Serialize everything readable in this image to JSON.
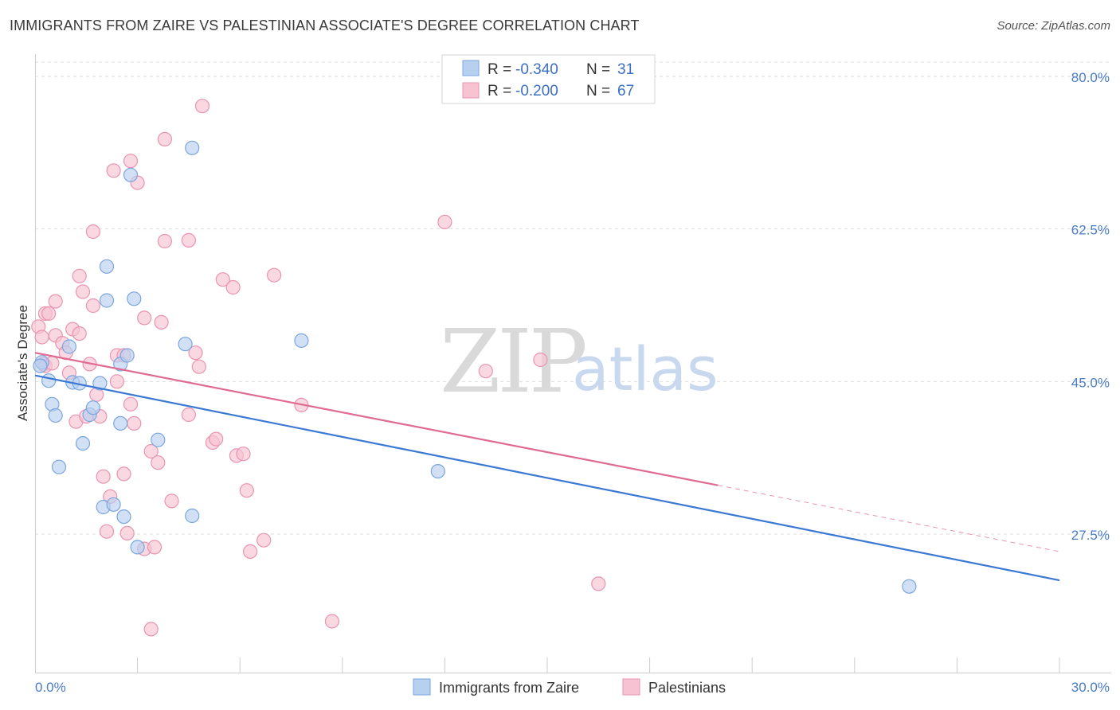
{
  "title": "IMMIGRANTS FROM ZAIRE VS PALESTINIAN ASSOCIATE'S DEGREE CORRELATION CHART",
  "source": "Source: ZipAtlas.com",
  "watermark": {
    "zip": "ZIP",
    "atlas": "atlas"
  },
  "colors": {
    "blue_fill": "#b8d0f0",
    "blue_stroke": "#7aa6e0",
    "blue_line": "#3a78d4",
    "pink_fill": "#f7c3d3",
    "pink_stroke": "#e994b0",
    "pink_line": "#e06a92",
    "grid": "#dddddd",
    "axis_text": "#4a7cc9"
  },
  "stats": [
    {
      "r_label": "R =",
      "r_value": "-0.340",
      "n_label": "N =",
      "n_value": "31"
    },
    {
      "r_label": "R =",
      "r_value": "-0.200",
      "n_label": "N =",
      "n_value": "67"
    }
  ],
  "chart_data": {
    "type": "scatter",
    "title": "IMMIGRANTS FROM ZAIRE VS PALESTINIAN ASSOCIATE'S DEGREE CORRELATION CHART",
    "xlabel": "",
    "ylabel": "Associate's Degree",
    "xlim": [
      0,
      30
    ],
    "ylim": [
      10,
      82.5
    ],
    "x_tick_labels": [
      "0.0%",
      "30.0%"
    ],
    "y_ticks": [
      80.0,
      62.5,
      45.0,
      27.5
    ],
    "y_tick_labels": [
      "80.0%",
      "62.5%",
      "45.0%",
      "27.5%"
    ],
    "legend": [
      "Immigrants from Zaire",
      "Palestinians"
    ],
    "series": [
      {
        "name": "Immigrants from Zaire",
        "color": "#b8d0f0",
        "points": [
          [
            0.2,
            47.2
          ],
          [
            0.4,
            45.1
          ],
          [
            0.5,
            42.4
          ],
          [
            0.6,
            41.1
          ],
          [
            1.0,
            49.0
          ],
          [
            1.1,
            44.9
          ],
          [
            1.3,
            44.8
          ],
          [
            1.4,
            37.9
          ],
          [
            0.7,
            35.2
          ],
          [
            1.6,
            41.2
          ],
          [
            1.7,
            42.0
          ],
          [
            1.9,
            44.8
          ],
          [
            2.1,
            58.2
          ],
          [
            2.1,
            54.3
          ],
          [
            2.0,
            30.6
          ],
          [
            2.3,
            30.9
          ],
          [
            2.5,
            47.0
          ],
          [
            2.5,
            40.2
          ],
          [
            2.6,
            29.5
          ],
          [
            2.7,
            48.0
          ],
          [
            2.8,
            68.7
          ],
          [
            2.9,
            54.5
          ],
          [
            3.0,
            26.0
          ],
          [
            3.6,
            38.3
          ],
          [
            4.4,
            49.3
          ],
          [
            4.6,
            29.6
          ],
          [
            4.6,
            71.8
          ],
          [
            7.8,
            49.7
          ],
          [
            11.8,
            34.7
          ],
          [
            25.6,
            21.5
          ],
          [
            0.15,
            46.8
          ]
        ],
        "trend": {
          "x": [
            0,
            30
          ],
          "y": [
            45.7,
            22.2
          ]
        }
      },
      {
        "name": "Palestinians",
        "color": "#f7c3d3",
        "points": [
          [
            0.1,
            51.3
          ],
          [
            0.2,
            50.1
          ],
          [
            0.25,
            47.0
          ],
          [
            0.3,
            52.8
          ],
          [
            0.3,
            46.8
          ],
          [
            0.4,
            52.8
          ],
          [
            0.5,
            47.1
          ],
          [
            0.6,
            50.3
          ],
          [
            0.6,
            54.2
          ],
          [
            0.8,
            49.4
          ],
          [
            0.9,
            48.3
          ],
          [
            1.0,
            46.0
          ],
          [
            1.1,
            51.0
          ],
          [
            1.2,
            40.4
          ],
          [
            1.3,
            50.5
          ],
          [
            1.3,
            57.1
          ],
          [
            1.4,
            55.3
          ],
          [
            1.5,
            41.0
          ],
          [
            1.6,
            47.0
          ],
          [
            1.7,
            53.7
          ],
          [
            1.7,
            62.2
          ],
          [
            1.8,
            43.5
          ],
          [
            1.9,
            41.0
          ],
          [
            2.0,
            34.1
          ],
          [
            2.1,
            27.8
          ],
          [
            2.2,
            31.8
          ],
          [
            2.3,
            69.2
          ],
          [
            2.4,
            48.0
          ],
          [
            2.4,
            45.0
          ],
          [
            2.6,
            48.0
          ],
          [
            2.6,
            34.4
          ],
          [
            2.7,
            27.6
          ],
          [
            2.8,
            70.3
          ],
          [
            2.8,
            42.4
          ],
          [
            2.9,
            40.2
          ],
          [
            3.0,
            67.8
          ],
          [
            3.2,
            52.3
          ],
          [
            3.2,
            25.8
          ],
          [
            3.4,
            37.0
          ],
          [
            3.4,
            16.6
          ],
          [
            3.5,
            26.0
          ],
          [
            3.6,
            35.7
          ],
          [
            3.7,
            51.8
          ],
          [
            3.8,
            61.1
          ],
          [
            3.8,
            72.8
          ],
          [
            4.0,
            31.3
          ],
          [
            4.5,
            41.2
          ],
          [
            4.5,
            61.2
          ],
          [
            4.7,
            48.3
          ],
          [
            4.8,
            46.7
          ],
          [
            4.9,
            76.6
          ],
          [
            5.2,
            38.0
          ],
          [
            5.3,
            38.4
          ],
          [
            5.5,
            56.7
          ],
          [
            5.8,
            55.8
          ],
          [
            5.9,
            36.5
          ],
          [
            6.1,
            36.7
          ],
          [
            6.2,
            32.5
          ],
          [
            6.3,
            25.5
          ],
          [
            6.7,
            26.8
          ],
          [
            7.0,
            57.2
          ],
          [
            7.8,
            42.3
          ],
          [
            8.7,
            17.5
          ],
          [
            13.2,
            46.2
          ],
          [
            14.8,
            47.5
          ],
          [
            16.5,
            21.8
          ],
          [
            12.0,
            63.3
          ]
        ],
        "trend": {
          "x": [
            0,
            20
          ],
          "y": [
            48.3,
            33.1
          ]
        },
        "trend_dashed": {
          "x": [
            20,
            30
          ],
          "y": [
            33.1,
            25.5
          ]
        }
      }
    ]
  }
}
